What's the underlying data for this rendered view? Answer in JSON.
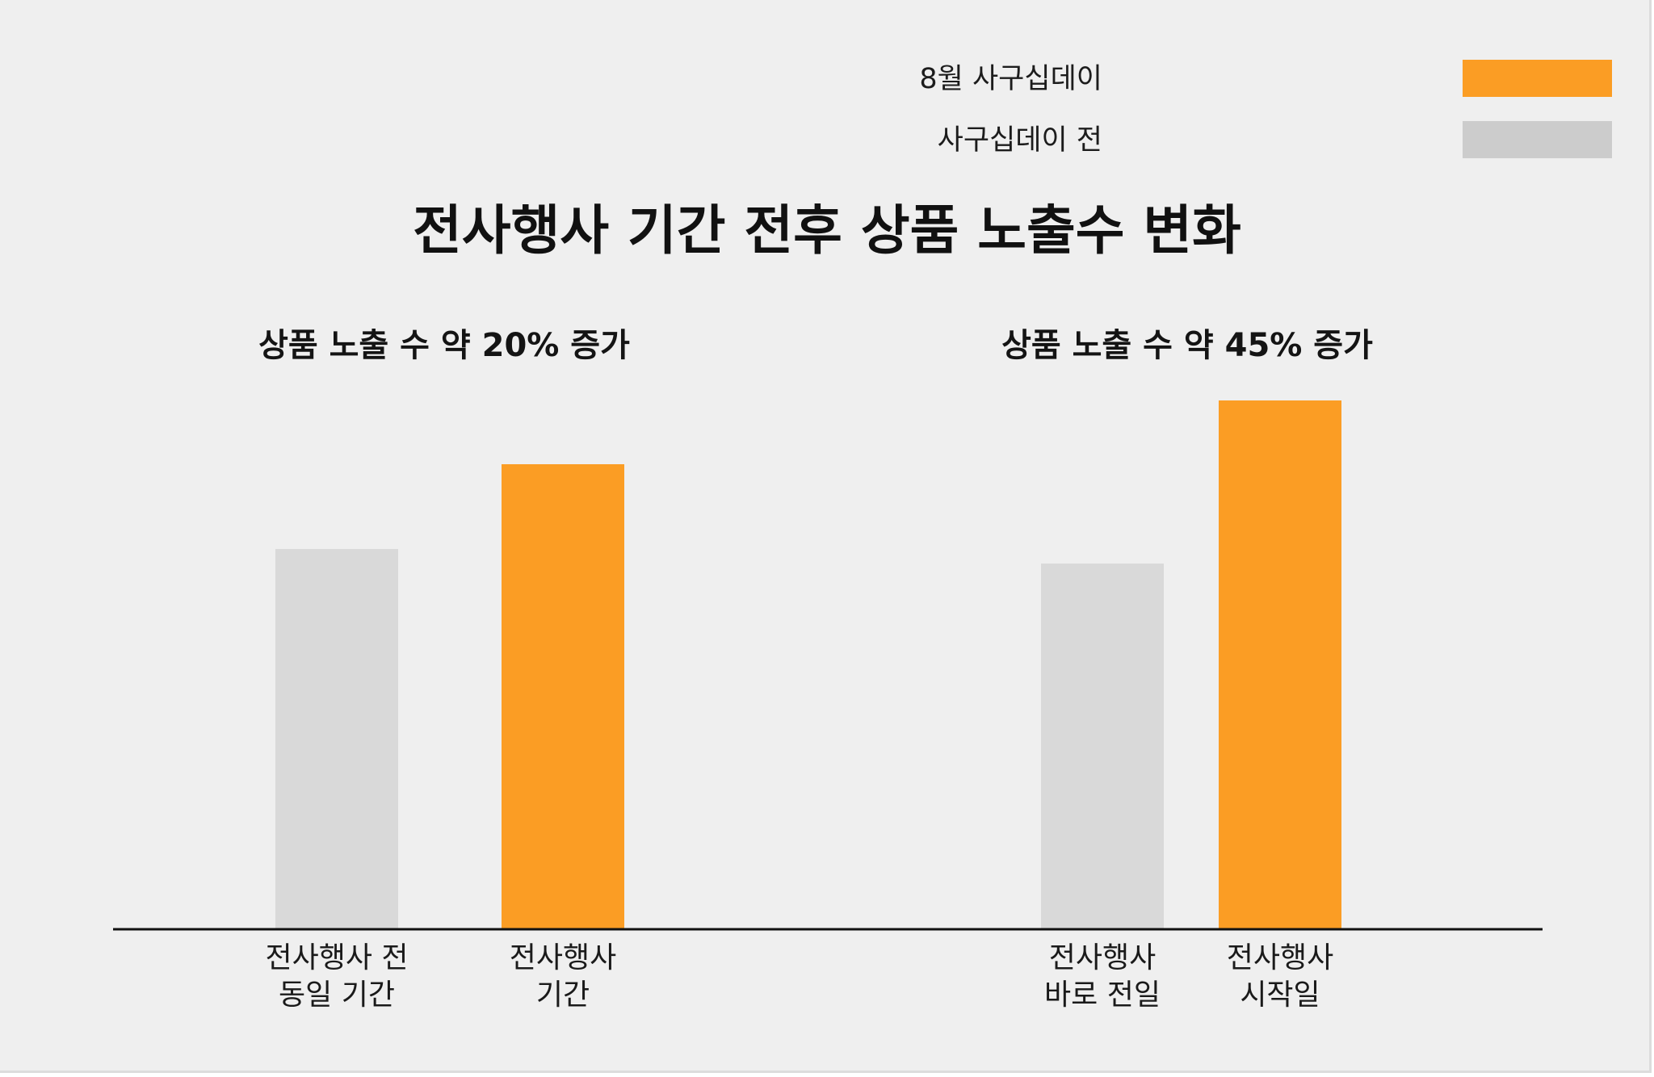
{
  "title": "전사행사 기간 전후 상품 노출수 변화",
  "legend": [
    {
      "label": "8월 사구십데이",
      "color": "#fb9d24"
    },
    {
      "label": "사구십데이 전",
      "color": "#cccccc"
    }
  ],
  "chart_data": {
    "type": "bar",
    "title": "전사행사 기간 전후 상품 노출수 변화",
    "grid": false,
    "legend_position": "top-right",
    "groups": [
      {
        "title": "상품 노출 수 약 20% 증가",
        "bars": [
          {
            "label_lines": [
              "전사행사 전",
              "동일 기간"
            ],
            "value": 471,
            "color": "#d9d9d9"
          },
          {
            "label_lines": [
              "전사행사",
              "기간"
            ],
            "value": 576,
            "color": "#fb9d24"
          }
        ]
      },
      {
        "title": "상품 노출 수 약 45% 증가",
        "bars": [
          {
            "label_lines": [
              "전사행사",
              "바로 전일"
            ],
            "value": 453,
            "color": "#d9d9d9"
          },
          {
            "label_lines": [
              "전사행사",
              "시작일"
            ],
            "value": 655,
            "color": "#fb9d24"
          }
        ]
      }
    ]
  }
}
